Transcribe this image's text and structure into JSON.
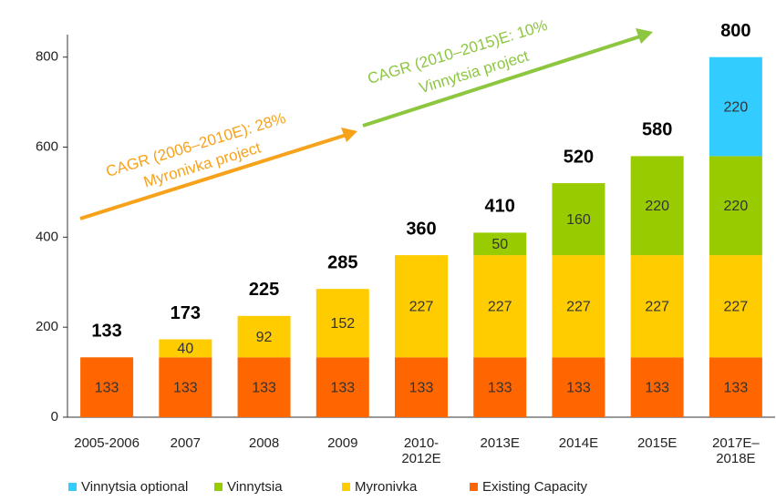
{
  "chart_data": {
    "type": "stacked_bar",
    "categories": [
      "2005-2006",
      "2007",
      "2008",
      "2009",
      "2010-\n2012E",
      "2013E",
      "2014E",
      "2015E",
      "2017E–\n2018E"
    ],
    "series": [
      {
        "name": "Vinnytsia optional",
        "color": "#33ccff",
        "values": [
          null,
          null,
          null,
          null,
          null,
          null,
          null,
          null,
          220
        ]
      },
      {
        "name": "Vinnytsia",
        "color": "#99cc00",
        "values": [
          null,
          null,
          null,
          null,
          null,
          50,
          160,
          220,
          220
        ]
      },
      {
        "name": "Myronivka",
        "color": "#ffcc00",
        "values": [
          null,
          40,
          92,
          152,
          227,
          227,
          227,
          227,
          227
        ]
      },
      {
        "name": "Existing Capacity",
        "color": "#ff6600",
        "values": [
          133,
          133,
          133,
          133,
          133,
          133,
          133,
          133,
          133
        ]
      }
    ],
    "totals": [
      133,
      173,
      225,
      285,
      360,
      410,
      520,
      580,
      800
    ],
    "ylim": [
      0,
      850
    ],
    "yticks": [
      0,
      200,
      400,
      600,
      800
    ],
    "annotations": [
      "CAGR (2006–2010E): 28%",
      "Myronivka project",
      "CAGR (2010–2015)E: 10%",
      "Vinnytsia project"
    ]
  }
}
